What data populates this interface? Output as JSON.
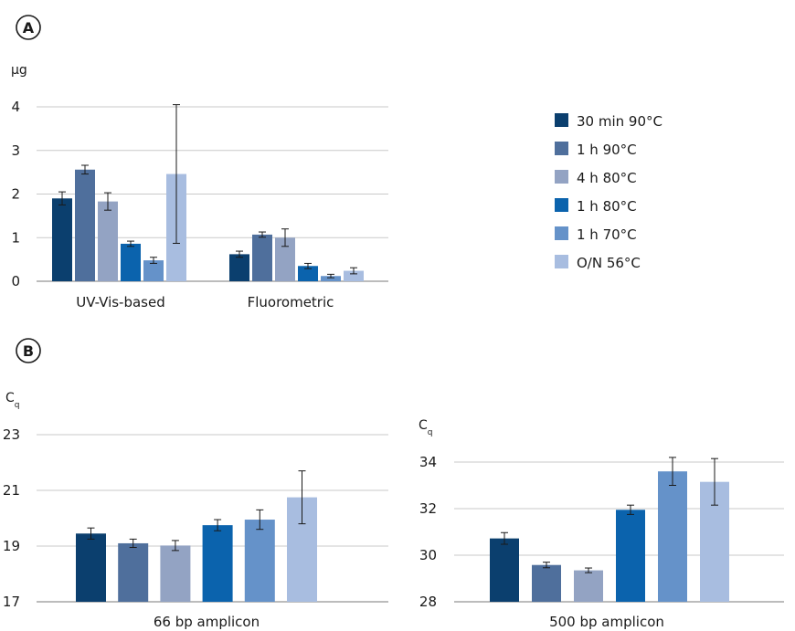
{
  "legend": [
    {
      "label": "30 min 90°C",
      "color": "#0b3f6e"
    },
    {
      "label": "1 h 90°C",
      "color": "#4f6f9c"
    },
    {
      "label": "4 h 80°C",
      "color": "#93a3c3"
    },
    {
      "label": "1 h 80°C",
      "color": "#0b63ad"
    },
    {
      "label": "1 h 70°C",
      "color": "#6592c9"
    },
    {
      "label": "O/N 56°C",
      "color": "#a8bde0"
    }
  ],
  "chart_data": [
    {
      "panel": "A",
      "type": "bar",
      "ylabel": "µg",
      "ylim": [
        0,
        4
      ],
      "yticks": [
        "0",
        "1",
        "2",
        "3",
        "4"
      ],
      "categories": [
        "UV-Vis-based",
        "Fluorometric"
      ],
      "series": [
        {
          "name": "30 min 90°C",
          "values": [
            1.9,
            0.62
          ],
          "errors": [
            0.15,
            0.07
          ]
        },
        {
          "name": "1 h 90°C",
          "values": [
            2.56,
            1.07
          ],
          "errors": [
            0.1,
            0.06
          ]
        },
        {
          "name": "4 h 80°C",
          "values": [
            1.83,
            1.0
          ],
          "errors": [
            0.2,
            0.2
          ]
        },
        {
          "name": "1 h 80°C",
          "values": [
            0.86,
            0.35
          ],
          "errors": [
            0.06,
            0.06
          ]
        },
        {
          "name": "1 h 70°C",
          "values": [
            0.48,
            0.12
          ],
          "errors": [
            0.07,
            0.04
          ]
        },
        {
          "name": "O/N 56°C",
          "values": [
            2.46,
            0.24
          ],
          "errors": [
            1.59,
            0.07
          ]
        }
      ],
      "grid": true
    },
    {
      "panel": "B",
      "type": "bar",
      "ylabel": "Cq",
      "ylim": [
        17,
        23
      ],
      "yticks": [
        "17",
        "19",
        "21",
        "23"
      ],
      "categories": [
        "66 bp amplicon"
      ],
      "series": [
        {
          "name": "30 min 90°C",
          "values": [
            19.45
          ],
          "errors": [
            0.2
          ]
        },
        {
          "name": "1 h 90°C",
          "values": [
            19.1
          ],
          "errors": [
            0.15
          ]
        },
        {
          "name": "4 h 80°C",
          "values": [
            19.02
          ],
          "errors": [
            0.18
          ]
        },
        {
          "name": "1 h 80°C",
          "values": [
            19.75
          ],
          "errors": [
            0.2
          ]
        },
        {
          "name": "1 h 70°C",
          "values": [
            19.95
          ],
          "errors": [
            0.35
          ]
        },
        {
          "name": "O/N 56°C",
          "values": [
            20.75
          ],
          "errors": [
            0.95
          ]
        }
      ],
      "grid": true
    },
    {
      "panel": "B",
      "type": "bar",
      "ylabel": "Cq",
      "ylim": [
        28,
        34
      ],
      "yticks": [
        "28",
        "30",
        "32",
        "34"
      ],
      "categories": [
        "500 bp amplicon"
      ],
      "series": [
        {
          "name": "30 min 90°C",
          "values": [
            30.72
          ],
          "errors": [
            0.25
          ]
        },
        {
          "name": "1 h 90°C",
          "values": [
            29.58
          ],
          "errors": [
            0.12
          ]
        },
        {
          "name": "4 h 80°C",
          "values": [
            29.35
          ],
          "errors": [
            0.1
          ]
        },
        {
          "name": "1 h 80°C",
          "values": [
            31.95
          ],
          "errors": [
            0.2
          ]
        },
        {
          "name": "1 h 70°C",
          "values": [
            33.6
          ],
          "errors": [
            0.6
          ]
        },
        {
          "name": "O/N 56°C",
          "values": [
            33.15
          ],
          "errors": [
            1.0
          ]
        }
      ],
      "grid": true
    }
  ],
  "panel_labels": [
    "A",
    "B"
  ]
}
